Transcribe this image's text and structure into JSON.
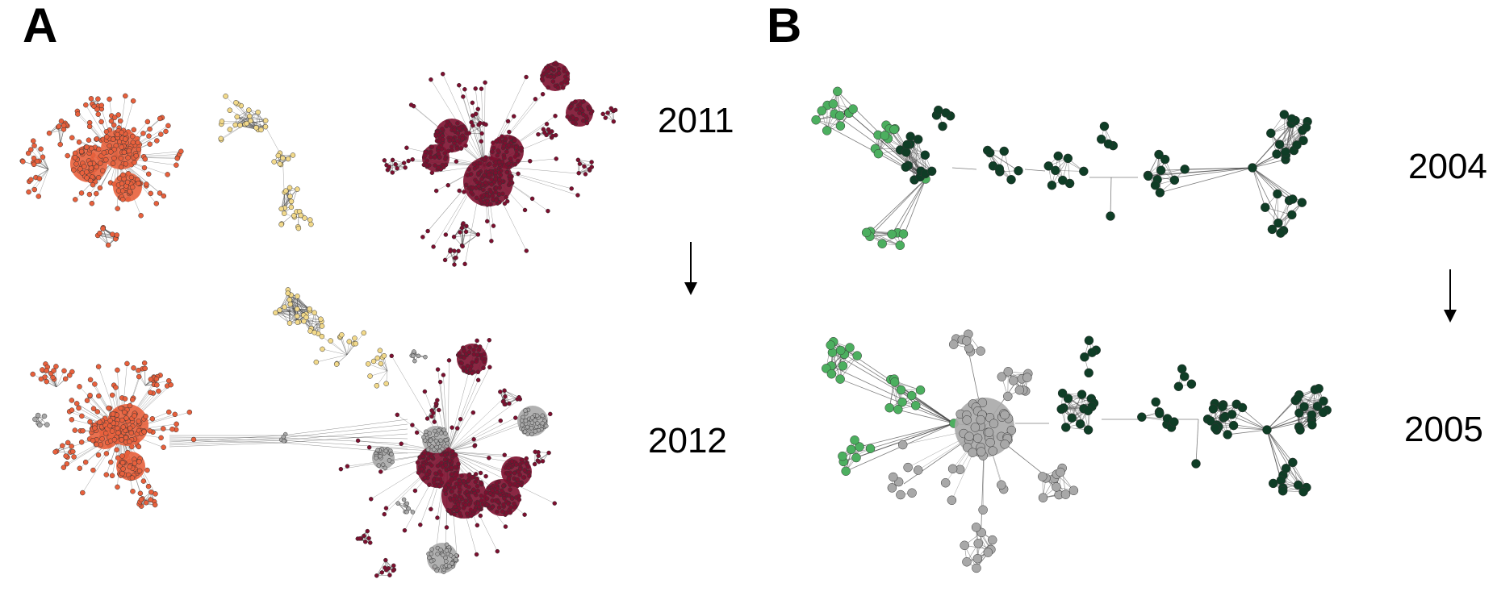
{
  "panel_a": {
    "letter": "A",
    "year_top": "2011",
    "year_bottom": "2012"
  },
  "panel_b": {
    "letter": "B",
    "year_top": "2004",
    "year_bottom": "2005"
  },
  "colors": {
    "orange": "#e8603c",
    "yellow": "#f2d98a",
    "crimson": "#7d0f2f",
    "gray": "#a8a8a8",
    "light_green": "#4caf5f",
    "dark_green": "#0f3d26",
    "edge": "#444444"
  }
}
